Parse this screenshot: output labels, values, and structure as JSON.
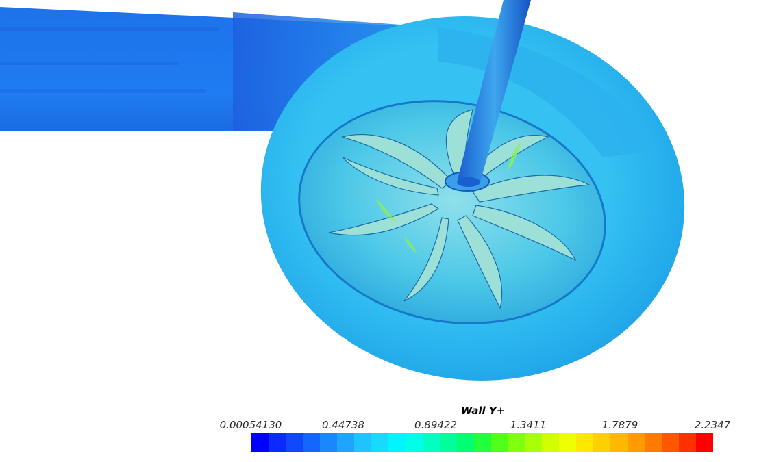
{
  "legend": {
    "title": "Wall Y+",
    "ticks": [
      "0.00054130",
      "0.44738",
      "0.89422",
      "1.3411",
      "1.7879",
      "2.2347"
    ]
  },
  "colormap": [
    "#0000ff",
    "#0a2aff",
    "#0f48ff",
    "#1466ff",
    "#1a86ff",
    "#1fa4ff",
    "#1fc3ff",
    "#15dcff",
    "#00f5ff",
    "#00ffe8",
    "#00ffc0",
    "#00ff98",
    "#00ff70",
    "#22ff3c",
    "#52ff1a",
    "#80ff10",
    "#a9ff08",
    "#d2ff00",
    "#f0ff00",
    "#ffe800",
    "#ffd000",
    "#ffb800",
    "#ff9a00",
    "#ff7a00",
    "#ff5600",
    "#ff3000",
    "#ff0000"
  ],
  "scene": {
    "pipe_color": "#1e7af0",
    "volute_color": "#2ab6ee",
    "blade_color": "#7bd2de",
    "shaft_color": "#1a6fd8"
  }
}
